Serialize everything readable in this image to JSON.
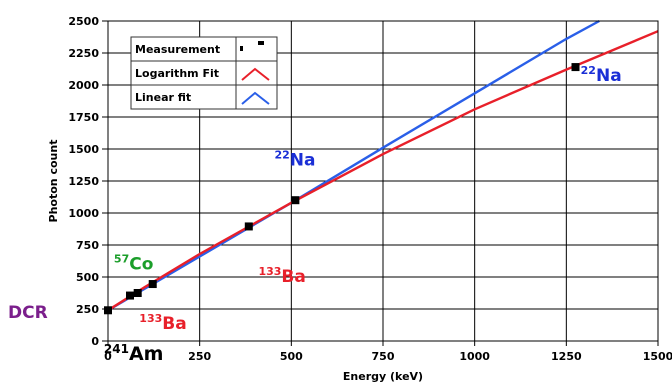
{
  "chart_data": {
    "type": "scatter",
    "xlabel": "Energy (keV)",
    "ylabel": "Photon count",
    "xlim": [
      0,
      1500
    ],
    "ylim": [
      0,
      2500
    ],
    "x_ticks": [
      0,
      250,
      500,
      750,
      1000,
      1250,
      1500
    ],
    "y_ticks": [
      0,
      250,
      500,
      750,
      1000,
      1250,
      1500,
      1750,
      2000,
      2250,
      2500
    ],
    "grid": true,
    "legend_position": "top-left",
    "legend": [
      {
        "label": "Measurement",
        "marker": "square",
        "color": "#000000"
      },
      {
        "label": "Logarithm Fit",
        "marker": "line",
        "color": "#e8202a"
      },
      {
        "label": "Linear fit",
        "marker": "line",
        "color": "#2a5fe8"
      }
    ],
    "series": [
      {
        "name": "Measurement",
        "kind": "points",
        "color": "#000000",
        "points": [
          {
            "x": 0,
            "y": 240
          },
          {
            "x": 60,
            "y": 355
          },
          {
            "x": 81,
            "y": 375
          },
          {
            "x": 122,
            "y": 445
          },
          {
            "x": 384,
            "y": 895
          },
          {
            "x": 511,
            "y": 1100
          },
          {
            "x": 1275,
            "y": 2140
          }
        ]
      },
      {
        "name": "Logarithm Fit",
        "kind": "line",
        "color": "#e8202a",
        "points": [
          {
            "x": 0,
            "y": 240
          },
          {
            "x": 100,
            "y": 420
          },
          {
            "x": 250,
            "y": 680
          },
          {
            "x": 500,
            "y": 1080
          },
          {
            "x": 750,
            "y": 1460
          },
          {
            "x": 1000,
            "y": 1810
          },
          {
            "x": 1250,
            "y": 2120
          },
          {
            "x": 1500,
            "y": 2420
          }
        ]
      },
      {
        "name": "Linear fit",
        "kind": "line",
        "color": "#2a5fe8",
        "points": [
          {
            "x": 0,
            "y": 240
          },
          {
            "x": 250,
            "y": 660
          },
          {
            "x": 500,
            "y": 1080
          },
          {
            "x": 750,
            "y": 1510
          },
          {
            "x": 1000,
            "y": 1935
          },
          {
            "x": 1250,
            "y": 2360
          },
          {
            "x": 1340,
            "y": 2500
          }
        ]
      }
    ],
    "annotations": [
      {
        "mass": "22",
        "symbol": "Na",
        "color": "#1a2fd6",
        "x": 1345,
        "y": 2030
      },
      {
        "mass": "22",
        "symbol": "Na",
        "color": "#1a2fd6",
        "x": 510,
        "y": 1370
      },
      {
        "mass": "133",
        "symbol": "Ba",
        "color": "#e8202a",
        "x": 475,
        "y": 460
      },
      {
        "mass": "57",
        "symbol": "Co",
        "color": "#1b9e2a",
        "x": 70,
        "y": 560
      },
      {
        "mass": "133",
        "symbol": "Ba",
        "color": "#e8202a",
        "x": 150,
        "y": 95
      },
      {
        "mass": "241",
        "symbol": "Am",
        "color": "#000000",
        "x": 70,
        "y": -150
      }
    ],
    "dcr_label": {
      "text": "DCR",
      "color": "#7b1f8c"
    }
  }
}
